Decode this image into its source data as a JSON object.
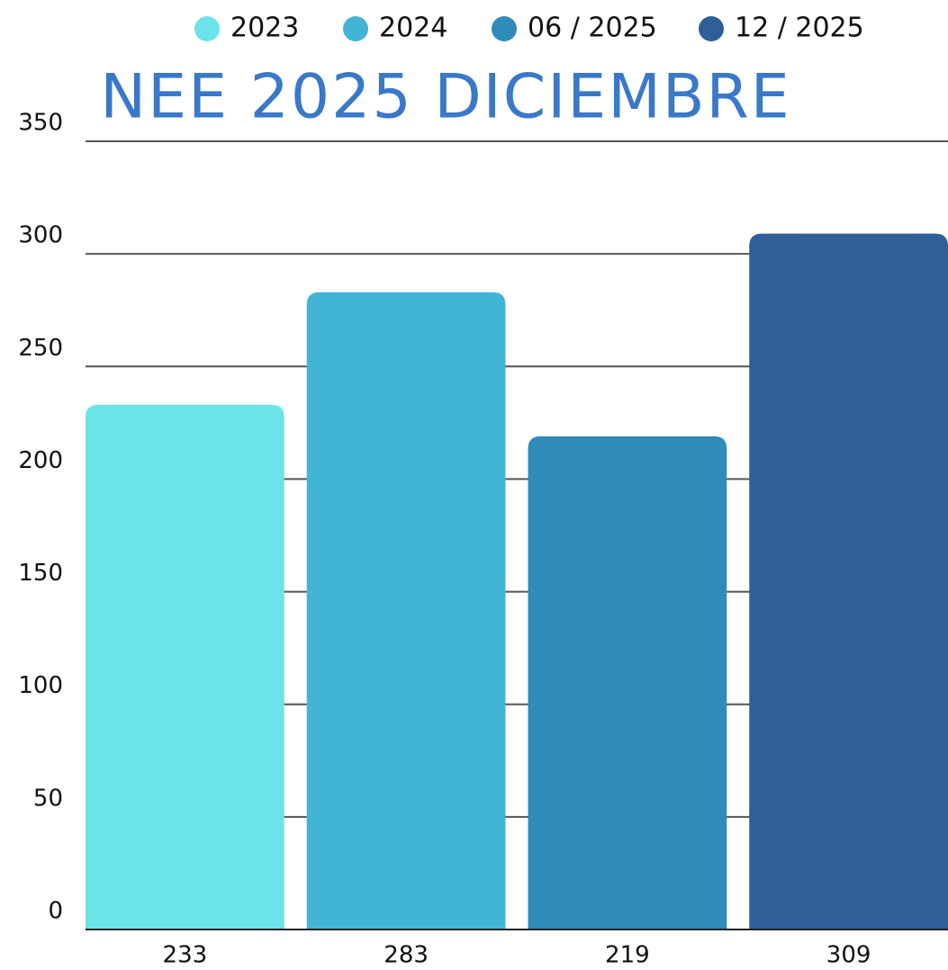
{
  "chart_data": {
    "type": "bar",
    "title": "NEE 2025 DICIEMBRE",
    "series": [
      {
        "name": "2023",
        "color": "#6ce3e8",
        "values": [
          233
        ]
      },
      {
        "name": "2024",
        "color": "#42b5d6",
        "values": [
          283
        ]
      },
      {
        "name": "06 / 2025",
        "color": "#2e8bba",
        "values": [
          219
        ]
      },
      {
        "name": "12 / 2025",
        "color": "#2e5f98",
        "values": [
          309
        ]
      }
    ],
    "ylim": [
      0,
      350
    ],
    "yticks": [
      0,
      50,
      100,
      150,
      200,
      250,
      300,
      350
    ],
    "grid": true,
    "legend": "top"
  }
}
